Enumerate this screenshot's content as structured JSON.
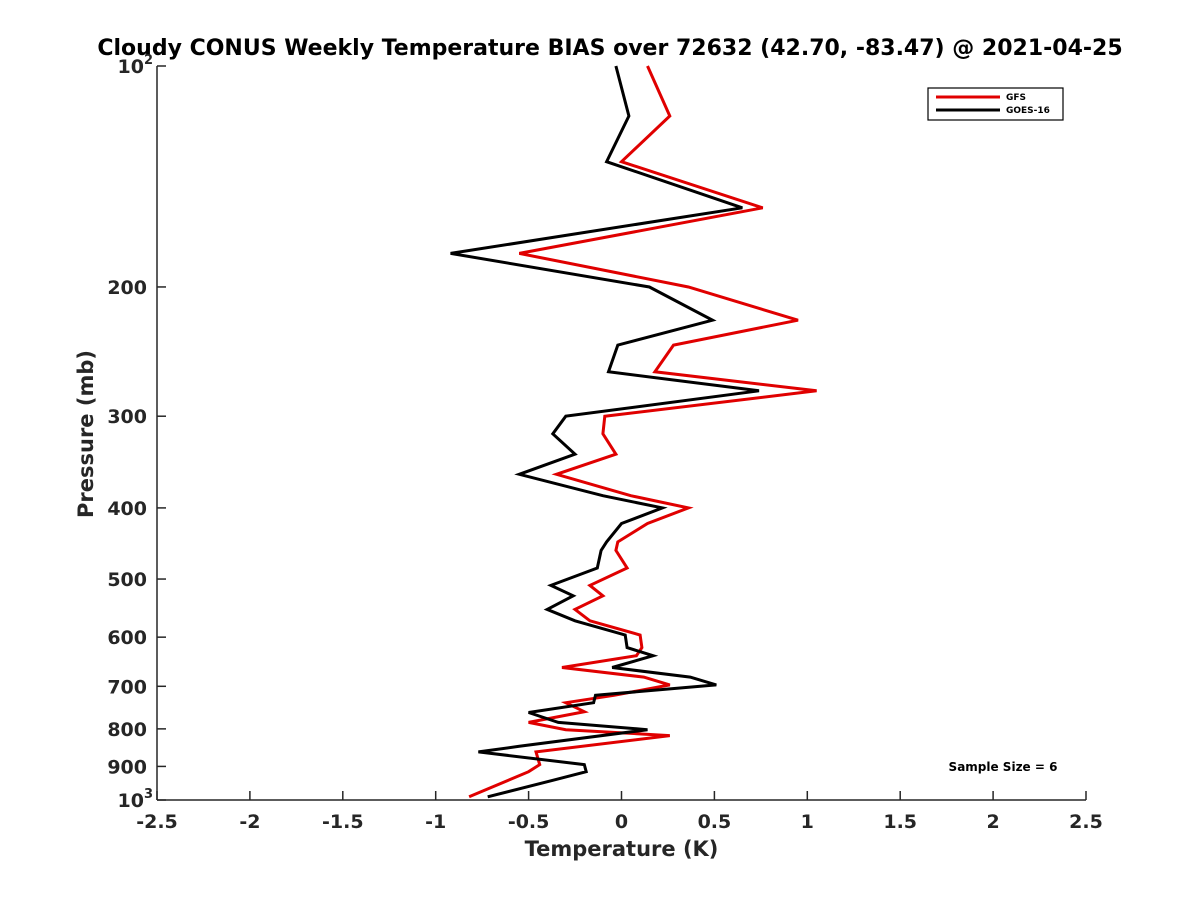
{
  "chart_data": {
    "type": "line",
    "title": "Cloudy CONUS Weekly Temperature BIAS over 72632 (42.70, -83.47) @ 2021-04-25",
    "xlabel": "Temperature (K)",
    "ylabel": "Pressure (mb)",
    "xlim": [
      -2.5,
      2.5
    ],
    "ylim": [
      100,
      1000
    ],
    "y_scale": "log",
    "y_reversed": true,
    "grid": false,
    "legend_position": "top-right",
    "x_ticks": [
      "-2.5",
      "-2",
      "-1.5",
      "-1",
      "-0.5",
      "0",
      "0.5",
      "1",
      "1.5",
      "2",
      "2.5"
    ],
    "y_ticks": [
      {
        "value": 100,
        "base": "10",
        "exp": "2"
      },
      {
        "value": 200,
        "label": "200"
      },
      {
        "value": 300,
        "label": "300"
      },
      {
        "value": 400,
        "label": "400"
      },
      {
        "value": 500,
        "label": "500"
      },
      {
        "value": 600,
        "label": "600"
      },
      {
        "value": 700,
        "label": "700"
      },
      {
        "value": 800,
        "label": "800"
      },
      {
        "value": 900,
        "label": "900"
      },
      {
        "value": 1000,
        "base": "10",
        "exp": "3"
      }
    ],
    "series": [
      {
        "name": "GFS",
        "color": "#e00000",
        "points": [
          [
            0.14,
            100
          ],
          [
            0.26,
            117
          ],
          [
            0.0,
            135
          ],
          [
            0.76,
            156
          ],
          [
            -0.55,
            180
          ],
          [
            0.36,
            200
          ],
          [
            0.95,
            222
          ],
          [
            0.28,
            240
          ],
          [
            0.18,
            261
          ],
          [
            1.05,
            277
          ],
          [
            -0.09,
            300
          ],
          [
            -0.1,
            317
          ],
          [
            -0.03,
            338
          ],
          [
            -0.35,
            360
          ],
          [
            0.05,
            385
          ],
          [
            0.36,
            400
          ],
          [
            0.14,
            420
          ],
          [
            -0.02,
            445
          ],
          [
            -0.03,
            457
          ],
          [
            0.03,
            483
          ],
          [
            -0.17,
            510
          ],
          [
            -0.1,
            527
          ],
          [
            -0.25,
            550
          ],
          [
            -0.17,
            570
          ],
          [
            0.1,
            596
          ],
          [
            0.11,
            620
          ],
          [
            0.08,
            636
          ],
          [
            -0.32,
            660
          ],
          [
            0.12,
            680
          ],
          [
            0.26,
            697
          ],
          [
            -0.04,
            720
          ],
          [
            -0.3,
            737
          ],
          [
            -0.2,
            758
          ],
          [
            -0.5,
            784
          ],
          [
            -0.3,
            802
          ],
          [
            0.26,
            817
          ],
          [
            -0.46,
            860
          ],
          [
            -0.44,
            895
          ],
          [
            -0.5,
            915
          ],
          [
            -0.82,
            990
          ]
        ]
      },
      {
        "name": "GOES-16",
        "color": "#000000",
        "points": [
          [
            -0.03,
            100
          ],
          [
            0.04,
            117
          ],
          [
            -0.08,
            135
          ],
          [
            0.65,
            156
          ],
          [
            -0.92,
            180
          ],
          [
            0.15,
            200
          ],
          [
            0.49,
            222
          ],
          [
            -0.02,
            240
          ],
          [
            -0.07,
            261
          ],
          [
            0.74,
            277
          ],
          [
            -0.3,
            300
          ],
          [
            -0.37,
            317
          ],
          [
            -0.25,
            338
          ],
          [
            -0.55,
            360
          ],
          [
            -0.1,
            385
          ],
          [
            0.22,
            400
          ],
          [
            0.0,
            420
          ],
          [
            -0.08,
            445
          ],
          [
            -0.11,
            457
          ],
          [
            -0.13,
            483
          ],
          [
            -0.38,
            510
          ],
          [
            -0.26,
            527
          ],
          [
            -0.4,
            550
          ],
          [
            -0.25,
            570
          ],
          [
            0.02,
            596
          ],
          [
            0.03,
            620
          ],
          [
            0.17,
            636
          ],
          [
            -0.05,
            660
          ],
          [
            0.37,
            680
          ],
          [
            0.51,
            697
          ],
          [
            -0.14,
            720
          ],
          [
            -0.15,
            737
          ],
          [
            -0.5,
            760
          ],
          [
            -0.34,
            784
          ],
          [
            0.14,
            802
          ],
          [
            -0.55,
            845
          ],
          [
            -0.77,
            860
          ],
          [
            -0.2,
            895
          ],
          [
            -0.19,
            915
          ],
          [
            -0.37,
            940
          ],
          [
            -0.72,
            990
          ]
        ]
      }
    ],
    "annotations": [
      {
        "text": "Sample Size = 6",
        "position": "bottom-right"
      }
    ]
  }
}
